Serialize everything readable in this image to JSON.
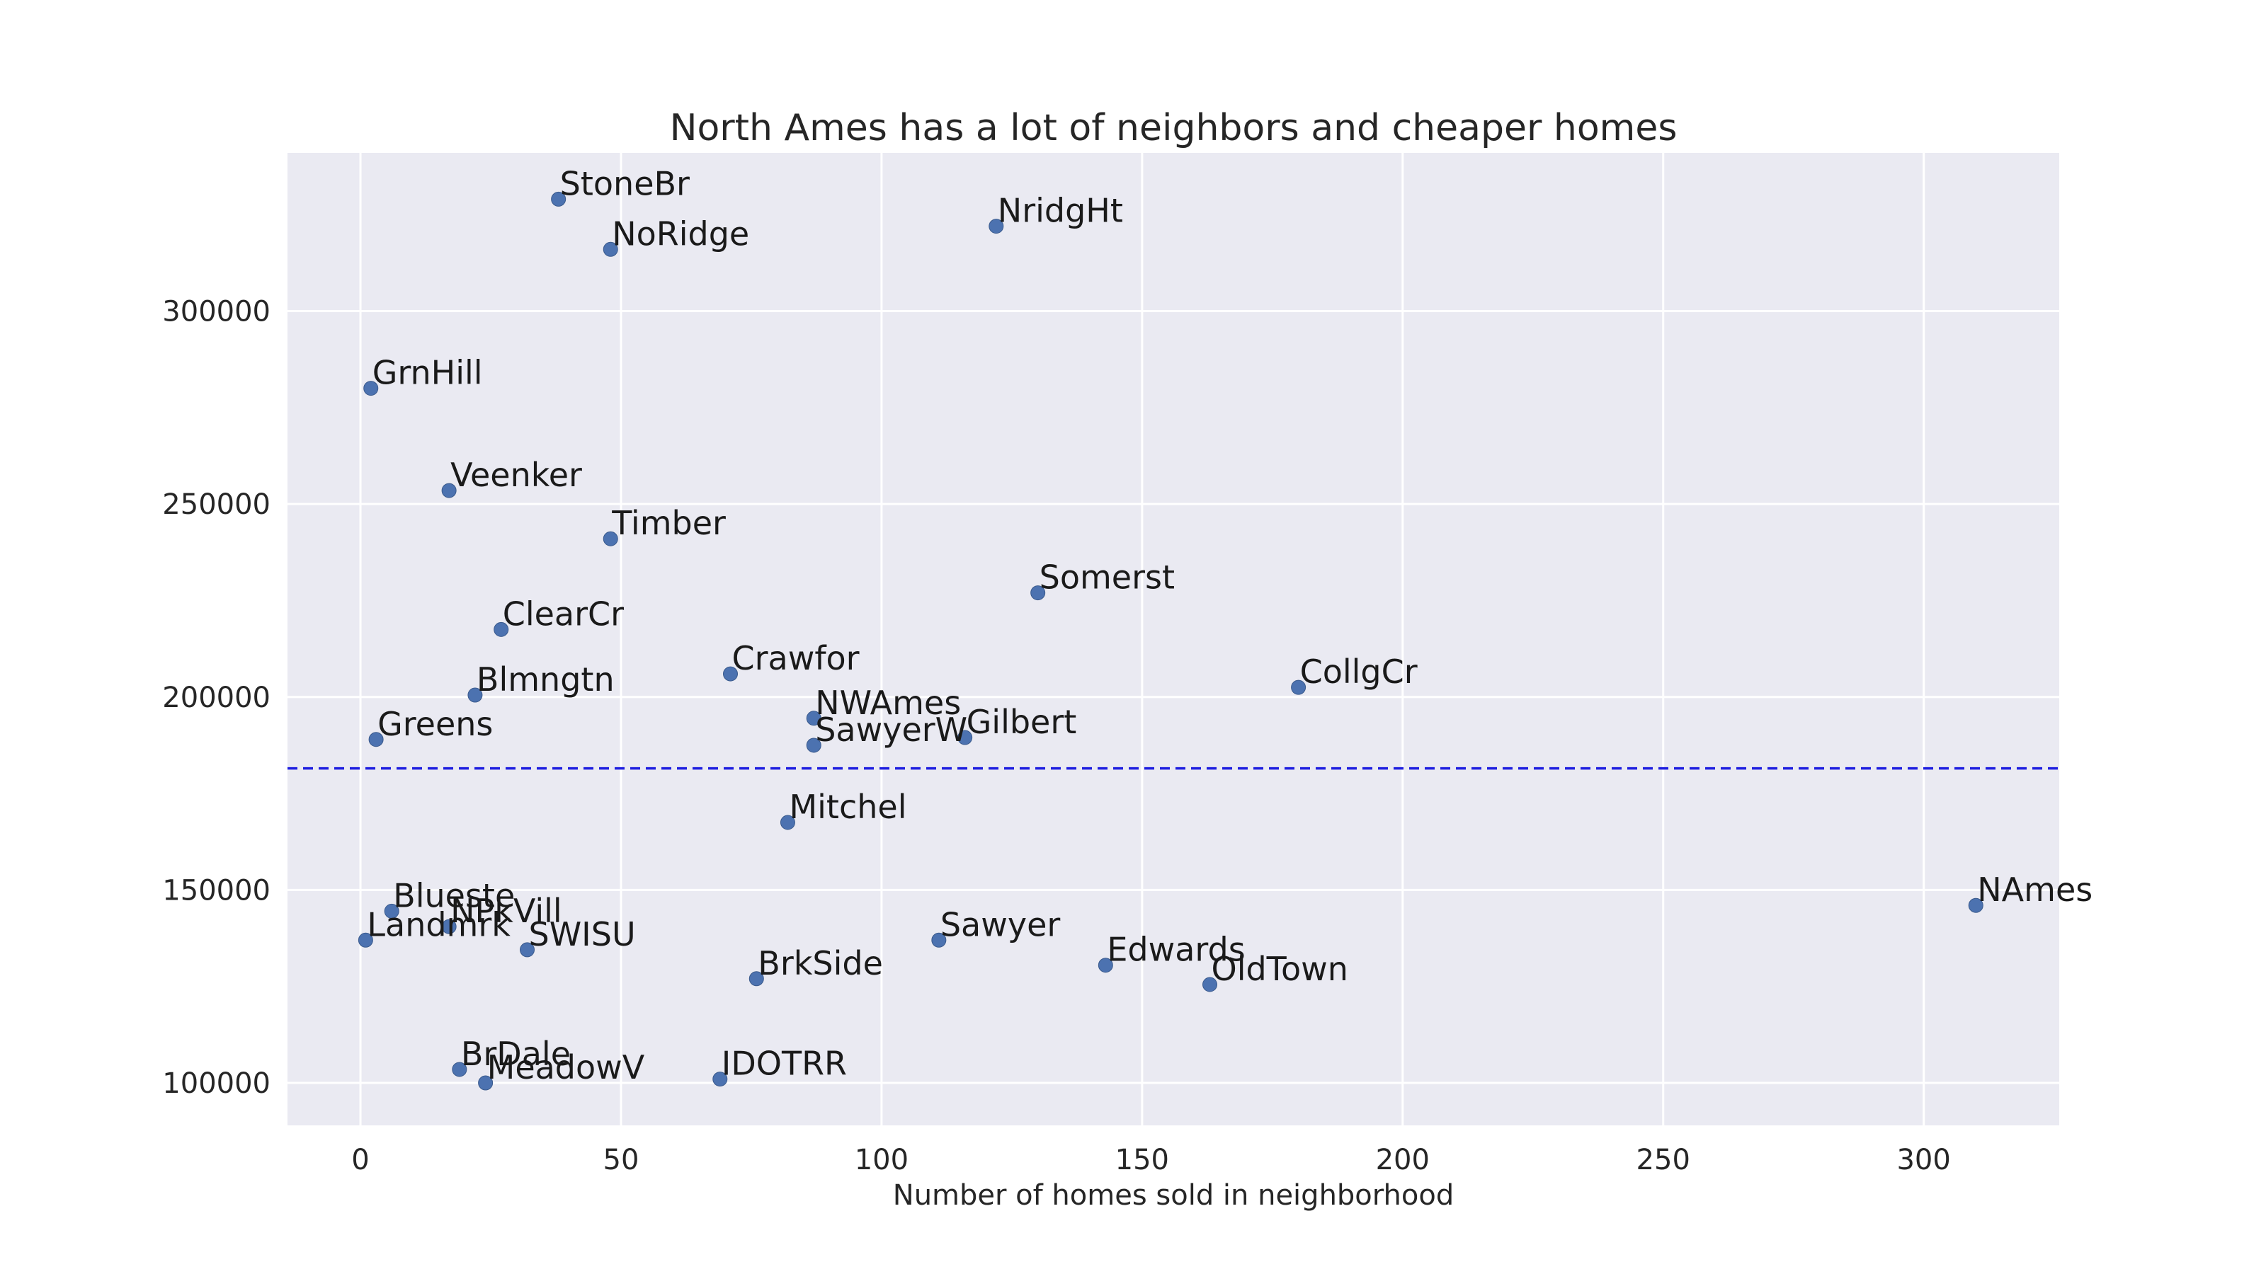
{
  "chart_data": {
    "type": "scatter",
    "title": "North Ames has a lot of neighbors and cheaper homes",
    "xlabel": "Number of homes sold in neighborhood",
    "ylabel": "",
    "xlim": [
      -14,
      326
    ],
    "ylim": [
      89000,
      341000
    ],
    "xticks": [
      0,
      50,
      100,
      150,
      200,
      250,
      300
    ],
    "yticks": [
      100000,
      150000,
      200000,
      250000,
      300000
    ],
    "grid": true,
    "reference_line": {
      "orientation": "horizontal",
      "y": 181500,
      "style": "dashed",
      "color": "#1f1fe0"
    },
    "colors": {
      "background": "#eaeaf2",
      "point": "#4c72b0",
      "grid": "#ffffff"
    },
    "points": [
      {
        "label": "StoneBr",
        "x": 38,
        "y": 329000
      },
      {
        "label": "NridgHt",
        "x": 122,
        "y": 322000
      },
      {
        "label": "NoRidge",
        "x": 48,
        "y": 316000
      },
      {
        "label": "GrnHill",
        "x": 2,
        "y": 280000
      },
      {
        "label": "Veenker",
        "x": 17,
        "y": 253500
      },
      {
        "label": "Timber",
        "x": 48,
        "y": 241000
      },
      {
        "label": "Somerst",
        "x": 130,
        "y": 227000
      },
      {
        "label": "ClearCr",
        "x": 27,
        "y": 217500
      },
      {
        "label": "Crawfor",
        "x": 71,
        "y": 206000
      },
      {
        "label": "CollgCr",
        "x": 180,
        "y": 202500
      },
      {
        "label": "Blmngtn",
        "x": 22,
        "y": 200500
      },
      {
        "label": "NWAmes",
        "x": 87,
        "y": 194500
      },
      {
        "label": "Gilbert",
        "x": 116,
        "y": 189500
      },
      {
        "label": "Greens",
        "x": 3,
        "y": 189000
      },
      {
        "label": "SawyerW",
        "x": 87,
        "y": 187500
      },
      {
        "label": "Mitchel",
        "x": 82,
        "y": 167500
      },
      {
        "label": "NAmes",
        "x": 310,
        "y": 146000
      },
      {
        "label": "Blueste",
        "x": 6,
        "y": 144500
      },
      {
        "label": "NPkVill",
        "x": 17,
        "y": 140500
      },
      {
        "label": "Landmrk",
        "x": 1,
        "y": 137000
      },
      {
        "label": "Sawyer",
        "x": 111,
        "y": 137000
      },
      {
        "label": "SWISU",
        "x": 32,
        "y": 134500
      },
      {
        "label": "Edwards",
        "x": 143,
        "y": 130500
      },
      {
        "label": "BrkSide",
        "x": 76,
        "y": 127000
      },
      {
        "label": "OldTown",
        "x": 163,
        "y": 125500
      },
      {
        "label": "BrDale",
        "x": 19,
        "y": 103500
      },
      {
        "label": "IDOTRR",
        "x": 69,
        "y": 101000
      },
      {
        "label": "MeadowV",
        "x": 24,
        "y": 100000
      }
    ]
  }
}
